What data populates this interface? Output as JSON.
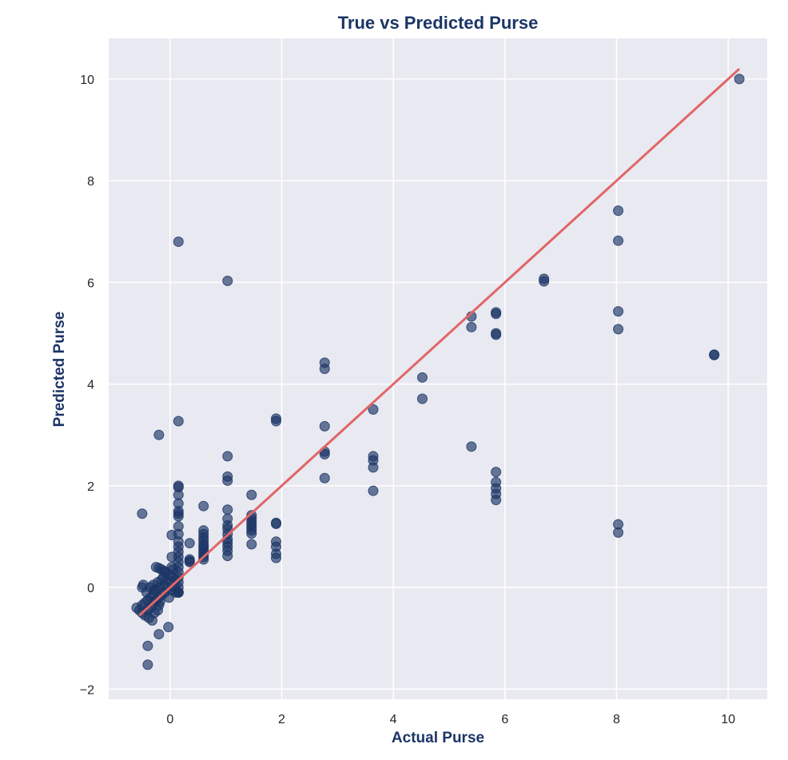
{
  "colors": {
    "plot_background": "#e9e9f1",
    "grid": "#ffffff",
    "title": "#1b3566",
    "point_fill": "#1b3566",
    "point_stroke": "#1b3566",
    "reference_line": "#e06666",
    "tick_text": "#262626"
  },
  "chart_data": {
    "type": "scatter",
    "title": "True vs Predicted Purse",
    "xlabel": "Actual Purse",
    "ylabel": "Predicted Purse",
    "xlim": [
      -1.1,
      10.7
    ],
    "ylim": [
      -2.2,
      10.8
    ],
    "xticks": [
      0,
      2,
      4,
      6,
      8,
      10
    ],
    "yticks": [
      -2,
      0,
      2,
      4,
      6,
      8,
      10
    ],
    "xtick_labels": [
      "0",
      "2",
      "4",
      "6",
      "8",
      "10"
    ],
    "ytick_labels": [
      "−2",
      "0",
      "2",
      "4",
      "6",
      "8",
      "10"
    ],
    "grid": true,
    "legend": "none",
    "reference_line": {
      "type": "identity",
      "x": [
        -0.55,
        10.2
      ],
      "y": [
        -0.55,
        10.2
      ]
    },
    "point_alpha": 0.65,
    "points": [
      [
        -0.6,
        -0.4
      ],
      [
        -0.55,
        -0.45
      ],
      [
        -0.5,
        -0.5
      ],
      [
        -0.5,
        -0.35
      ],
      [
        -0.45,
        -0.55
      ],
      [
        -0.45,
        -0.3
      ],
      [
        -0.5,
        0.0
      ],
      [
        -0.48,
        0.05
      ],
      [
        -0.4,
        -0.25
      ],
      [
        -0.4,
        -0.45
      ],
      [
        -0.38,
        -0.6
      ],
      [
        -0.35,
        -0.2
      ],
      [
        -0.35,
        -0.4
      ],
      [
        -0.32,
        -0.65
      ],
      [
        -0.3,
        -0.15
      ],
      [
        -0.3,
        -0.3
      ],
      [
        -0.28,
        -0.5
      ],
      [
        -0.25,
        -0.05
      ],
      [
        -0.25,
        -0.25
      ],
      [
        -0.22,
        0.1
      ],
      [
        -0.2,
        -0.35
      ],
      [
        -0.2,
        -0.2
      ],
      [
        -0.18,
        0.0
      ],
      [
        -0.15,
        0.15
      ],
      [
        -0.15,
        -0.15
      ],
      [
        -0.12,
        0.2
      ],
      [
        -0.1,
        -0.1
      ],
      [
        -0.1,
        0.05
      ],
      [
        -0.08,
        0.3
      ],
      [
        -0.05,
        0.0
      ],
      [
        -0.05,
        0.15
      ],
      [
        -0.02,
        -0.2
      ],
      [
        0.0,
        0.1
      ],
      [
        0.0,
        0.25
      ],
      [
        0.02,
        -0.05
      ],
      [
        0.05,
        0.2
      ],
      [
        0.05,
        0.35
      ],
      [
        0.08,
        0.0
      ],
      [
        0.1,
        -0.1
      ],
      [
        0.1,
        0.15
      ],
      [
        -0.25,
        0.4
      ],
      [
        -0.2,
        0.38
      ],
      [
        -0.15,
        0.35
      ],
      [
        -0.1,
        0.32
      ],
      [
        -0.22,
        -0.45
      ],
      [
        -0.3,
        0.05
      ],
      [
        -0.42,
        -0.1
      ],
      [
        -0.36,
        0.0
      ],
      [
        -0.28,
        -0.05
      ],
      [
        -0.18,
        -0.28
      ],
      [
        -0.5,
        1.45
      ],
      [
        -0.2,
        3.0
      ],
      [
        -0.4,
        -1.15
      ],
      [
        -0.4,
        -1.52
      ],
      [
        -0.2,
        -0.92
      ],
      [
        -0.03,
        -0.78
      ],
      [
        0.03,
        1.03
      ],
      [
        0.03,
        0.6
      ],
      [
        0.03,
        0.4
      ],
      [
        0.15,
        6.8
      ],
      [
        0.15,
        3.27
      ],
      [
        0.15,
        2.0
      ],
      [
        0.15,
        1.97
      ],
      [
        0.15,
        1.82
      ],
      [
        0.15,
        1.65
      ],
      [
        0.15,
        1.5
      ],
      [
        0.15,
        1.45
      ],
      [
        0.15,
        1.4
      ],
      [
        0.15,
        1.2
      ],
      [
        0.15,
        1.05
      ],
      [
        0.15,
        0.9
      ],
      [
        0.15,
        0.8
      ],
      [
        0.15,
        0.7
      ],
      [
        0.15,
        0.6
      ],
      [
        0.15,
        0.5
      ],
      [
        0.15,
        0.4
      ],
      [
        0.15,
        0.3
      ],
      [
        0.15,
        0.2
      ],
      [
        0.15,
        0.1
      ],
      [
        0.15,
        0.0
      ],
      [
        0.15,
        -0.1
      ],
      [
        0.15,
        -0.1
      ],
      [
        0.15,
        -0.1
      ],
      [
        0.35,
        0.87
      ],
      [
        0.35,
        0.55
      ],
      [
        0.35,
        0.52
      ],
      [
        0.35,
        0.5
      ],
      [
        0.6,
        1.6
      ],
      [
        0.6,
        1.12
      ],
      [
        0.6,
        1.05
      ],
      [
        0.6,
        0.98
      ],
      [
        0.6,
        0.92
      ],
      [
        0.6,
        0.85
      ],
      [
        0.6,
        0.8
      ],
      [
        0.6,
        0.75
      ],
      [
        0.6,
        0.7
      ],
      [
        0.6,
        0.65
      ],
      [
        0.6,
        0.6
      ],
      [
        0.6,
        0.55
      ],
      [
        1.03,
        6.03
      ],
      [
        1.03,
        2.58
      ],
      [
        1.03,
        2.18
      ],
      [
        1.03,
        2.1
      ],
      [
        1.03,
        1.53
      ],
      [
        1.03,
        1.35
      ],
      [
        1.03,
        1.22
      ],
      [
        1.03,
        1.15
      ],
      [
        1.03,
        1.05
      ],
      [
        1.03,
        0.95
      ],
      [
        1.03,
        0.88
      ],
      [
        1.03,
        0.8
      ],
      [
        1.03,
        0.72
      ],
      [
        1.03,
        0.62
      ],
      [
        1.46,
        1.82
      ],
      [
        1.46,
        1.42
      ],
      [
        1.46,
        1.36
      ],
      [
        1.46,
        1.3
      ],
      [
        1.46,
        1.24
      ],
      [
        1.46,
        1.18
      ],
      [
        1.46,
        1.12
      ],
      [
        1.46,
        1.06
      ],
      [
        1.46,
        0.85
      ],
      [
        1.9,
        3.32
      ],
      [
        1.9,
        3.27
      ],
      [
        1.9,
        1.27
      ],
      [
        1.9,
        1.25
      ],
      [
        1.9,
        0.9
      ],
      [
        1.9,
        0.8
      ],
      [
        1.9,
        0.66
      ],
      [
        1.9,
        0.58
      ],
      [
        2.77,
        4.42
      ],
      [
        2.77,
        4.3
      ],
      [
        2.77,
        3.17
      ],
      [
        2.77,
        2.67
      ],
      [
        2.77,
        2.62
      ],
      [
        2.77,
        2.15
      ],
      [
        3.64,
        3.5
      ],
      [
        3.64,
        2.58
      ],
      [
        3.64,
        2.5
      ],
      [
        3.64,
        2.36
      ],
      [
        3.64,
        1.9
      ],
      [
        4.52,
        4.13
      ],
      [
        4.52,
        3.71
      ],
      [
        5.4,
        5.33
      ],
      [
        5.4,
        5.12
      ],
      [
        5.4,
        2.77
      ],
      [
        5.84,
        5.41
      ],
      [
        5.84,
        5.38
      ],
      [
        5.84,
        5.0
      ],
      [
        5.84,
        4.97
      ],
      [
        5.84,
        2.27
      ],
      [
        5.84,
        2.07
      ],
      [
        5.84,
        1.95
      ],
      [
        5.84,
        1.84
      ],
      [
        5.84,
        1.72
      ],
      [
        6.7,
        6.07
      ],
      [
        6.7,
        6.02
      ],
      [
        8.03,
        7.41
      ],
      [
        8.03,
        6.82
      ],
      [
        8.03,
        5.43
      ],
      [
        8.03,
        5.08
      ],
      [
        8.03,
        1.24
      ],
      [
        8.03,
        1.08
      ],
      [
        9.75,
        4.58
      ],
      [
        9.75,
        4.57
      ],
      [
        10.2,
        10.0
      ]
    ]
  }
}
